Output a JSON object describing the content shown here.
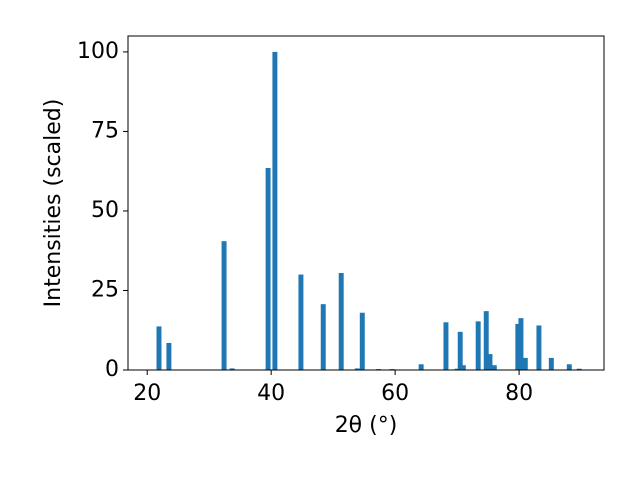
{
  "chart_data": {
    "type": "bar",
    "x_label": "2θ (°)",
    "y_label": "Intensities (scaled)",
    "x": [
      21.9,
      23.5,
      32.4,
      33.7,
      39.5,
      40.6,
      44.8,
      48.4,
      51.3,
      53.9,
      54.7,
      57.3,
      59.5,
      64.2,
      68.2,
      70.0,
      70.5,
      71.0,
      73.4,
      74.7,
      75.3,
      76.0,
      79.8,
      80.3,
      81.0,
      83.2,
      85.2,
      88.1,
      89.7
    ],
    "values": [
      13.7,
      8.5,
      40.5,
      0.5,
      63.5,
      100,
      30,
      20.7,
      30.5,
      0.5,
      18,
      0.3,
      0.3,
      1.8,
      15,
      0.4,
      12,
      1.5,
      15.3,
      18.5,
      5,
      1.5,
      14.5,
      16.3,
      3.8,
      14,
      3.8,
      1.8,
      0.4
    ],
    "color": "#1f77b4",
    "xlim": [
      16.9,
      93.7
    ],
    "ylim": [
      0,
      105
    ],
    "xticks": [
      20,
      40,
      60,
      80
    ],
    "yticks": [
      0,
      25,
      50,
      75,
      100
    ]
  }
}
